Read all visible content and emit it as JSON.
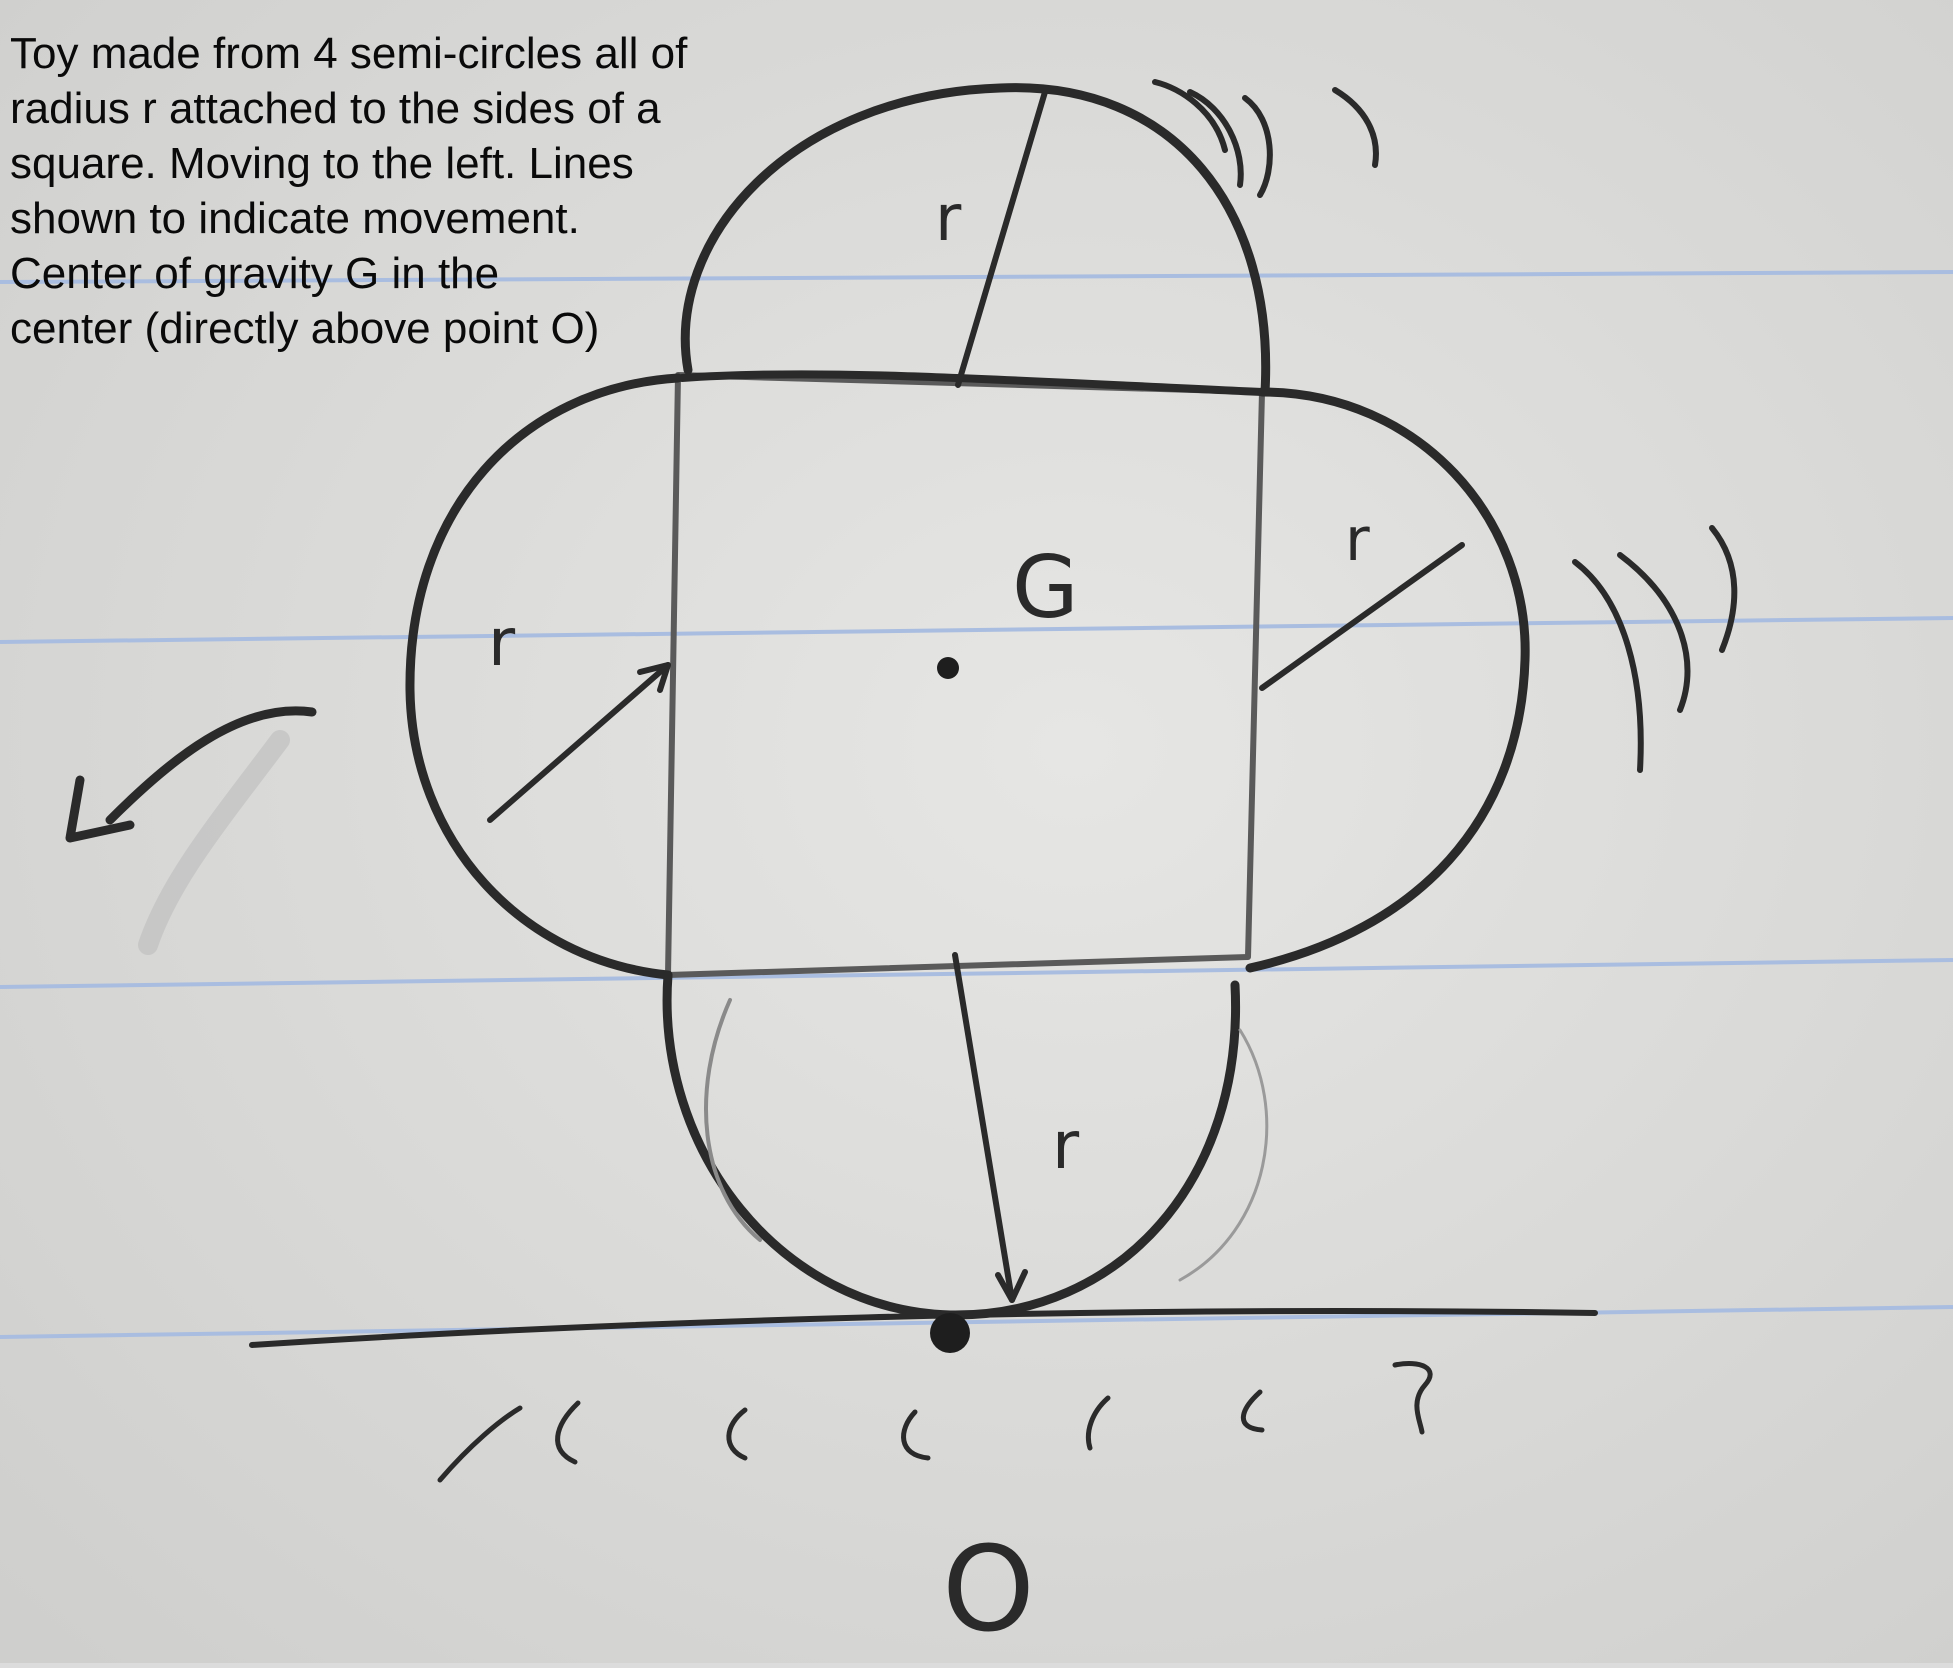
{
  "caption": {
    "lines": [
      "Toy made from 4 semi-circles all of",
      "radius r attached to the sides of a",
      "square. Moving to the left. Lines",
      "shown to indicate movement.",
      "Center of gravity G in the",
      "center (directly above point O)"
    ]
  },
  "labels": {
    "radius_top": "r",
    "radius_right": "r",
    "radius_left": "r",
    "radius_bottom": "r",
    "center_of_gravity": "G",
    "contact_point": "O"
  },
  "colors": {
    "paper": "#dcdcdc",
    "rule_line": "#a9bde0",
    "pencil": "#2a2a2a",
    "caption_text": "#0a0a0a"
  },
  "icons": {
    "motion_arrow": "curved-arrow-left-icon",
    "vibration_marks": "motion-lines-icon"
  }
}
